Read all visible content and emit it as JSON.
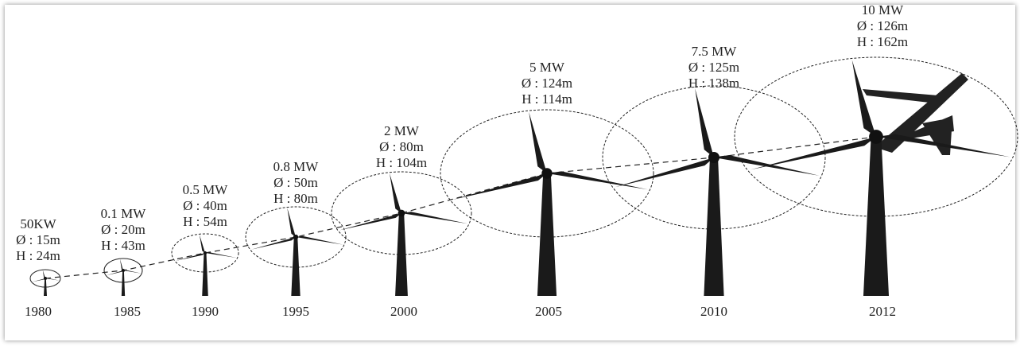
{
  "turbines": [
    {
      "power": "50KW",
      "diameter": "Ø : 15m",
      "height": "H : 24m",
      "year": "1980"
    },
    {
      "power": "0.1 MW",
      "diameter": "Ø : 20m",
      "height": "H : 43m",
      "year": "1985"
    },
    {
      "power": "0.5 MW",
      "diameter": "Ø : 40m",
      "height": "H : 54m",
      "year": "1990"
    },
    {
      "power": "0.8 MW",
      "diameter": "Ø : 50m",
      "height": "H : 80m",
      "year": "1995"
    },
    {
      "power": "2 MW",
      "diameter": "Ø : 80m",
      "height": "H : 104m",
      "year": "2000"
    },
    {
      "power": "5 MW",
      "diameter": "Ø : 124m",
      "height": "H : 114m",
      "year": "2005"
    },
    {
      "power": "7.5 MW",
      "diameter": "Ø : 125m",
      "height": "H : 138m",
      "year": "2010"
    },
    {
      "power": "10 MW",
      "diameter": "Ø : 126m",
      "height": "H : 162m",
      "year": "2012"
    }
  ]
}
